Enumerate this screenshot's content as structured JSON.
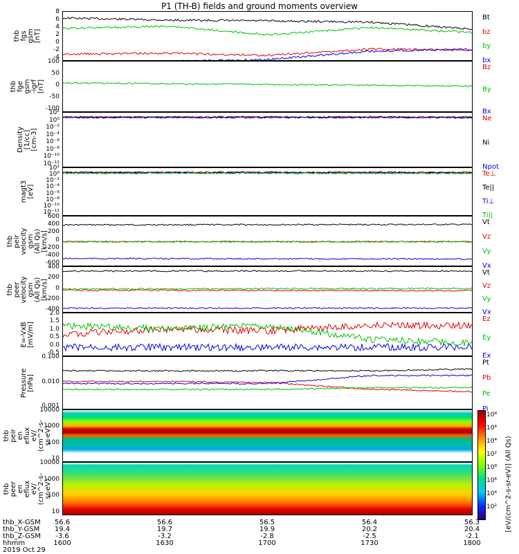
{
  "title": "P1 (TH-B) fields and ground moments overview",
  "panels": [
    {
      "id": "fgs_gsm",
      "ylabel": [
        "thb",
        "fgs",
        "gsm",
        "[nT]"
      ],
      "ticks": [
        "8",
        "6",
        "4",
        "2",
        "0",
        "-2",
        "-4"
      ],
      "legend": [
        {
          "label": "Bt",
          "color": "#000000"
        },
        {
          "label": "bz",
          "color": "#e00000"
        },
        {
          "label": "by",
          "color": "#00c000"
        },
        {
          "label": "bx",
          "color": "#0000e0"
        }
      ]
    },
    {
      "id": "fge_gsm",
      "ylabel": [
        "thb",
        "fge",
        "gsm",
        "-igrf",
        "[nT]"
      ],
      "ticks": [
        "100",
        "50",
        "0",
        "-50",
        "-100"
      ],
      "legend": [
        {
          "label": "Bz",
          "color": "#e00000"
        },
        {
          "label": "By",
          "color": "#00c000"
        },
        {
          "label": "Bx",
          "color": "#0000e0"
        }
      ]
    },
    {
      "id": "density",
      "ylabel": [
        "Density",
        "[1/cc]",
        "[cm-3]"
      ],
      "ticks": [
        "10²",
        "10⁰",
        "10⁻²",
        "10⁻⁴",
        "10⁻⁶",
        "10⁻⁸",
        "10⁻¹⁰",
        "10⁻¹²"
      ],
      "legend": [
        {
          "label": "Ne",
          "color": "#e00000"
        },
        {
          "label": "Ni",
          "color": "#000000"
        },
        {
          "label": "Npot",
          "color": "#0000e0"
        }
      ]
    },
    {
      "id": "temperature",
      "ylabel": [
        "magt3",
        "[eV]"
      ],
      "ticks": [
        "10²",
        "10⁰",
        "10⁻²",
        "10⁻⁴",
        "10⁻⁶",
        "10⁻⁸",
        "10⁻¹⁰",
        "10⁻¹²"
      ],
      "legend": [
        {
          "label": "Te⊥",
          "color": "#e00000"
        },
        {
          "label": "Te||",
          "color": "#000000"
        },
        {
          "label": "Ti⊥",
          "color": "#0000e0"
        },
        {
          "label": "Ti||",
          "color": "#00c000"
        }
      ]
    },
    {
      "id": "peir_velocity",
      "ylabel": [
        "thb",
        "peir",
        "velocity",
        "gsm",
        "(All Qs)",
        "[km/s]"
      ],
      "ticks": [
        "600",
        "400",
        "200",
        "0",
        "-200",
        "-400",
        "-600"
      ],
      "legend": [
        {
          "label": "Vt",
          "color": "#000000"
        },
        {
          "label": "Vz",
          "color": "#e00000"
        },
        {
          "label": "Vy",
          "color": "#00c000"
        },
        {
          "label": "Vx",
          "color": "#0000e0"
        }
      ]
    },
    {
      "id": "peer_velocity",
      "ylabel": [
        "thb",
        "peer",
        "velocity",
        "gsm",
        "(All Qs)",
        "[km/s]"
      ],
      "ticks": [
        "400",
        "200",
        "0",
        "-200",
        "-400"
      ],
      "legend": [
        {
          "label": "Vt",
          "color": "#000000"
        },
        {
          "label": "Vz",
          "color": "#e00000"
        },
        {
          "label": "Vy",
          "color": "#00c000"
        },
        {
          "label": "Vx",
          "color": "#0000e0"
        }
      ]
    },
    {
      "id": "efield",
      "ylabel": [
        "E=-VxB",
        "[mV/m]"
      ],
      "ticks": [
        "2.0",
        "1.5",
        "1.0",
        "0.5",
        "0.0",
        "-0.5"
      ],
      "legend": [
        {
          "label": "Ez",
          "color": "#e00000"
        },
        {
          "label": "Ey",
          "color": "#00c000"
        },
        {
          "label": "Ex",
          "color": "#0000e0"
        }
      ]
    },
    {
      "id": "pressure",
      "ylabel": [
        "Pressure",
        "[nPa]"
      ],
      "ticks": [
        "0.100",
        "0.010",
        "0.001"
      ],
      "legend": [
        {
          "label": "Pt",
          "color": "#000000"
        },
        {
          "label": "Pb",
          "color": "#e00000"
        },
        {
          "label": "Pe",
          "color": "#00c000"
        },
        {
          "label": "Pi",
          "color": "#0000e0"
        }
      ]
    },
    {
      "id": "peir_spec",
      "ylabel": [
        "thb",
        "peir",
        "en",
        "eflux",
        "eV/",
        "(cm^2-s-",
        "sr-eV)"
      ],
      "ticks": [
        "10000",
        "1000",
        "100",
        "10"
      ],
      "legend": []
    },
    {
      "id": "peer_spec",
      "ylabel": [
        "thb",
        "peer",
        "en",
        "eflux",
        "eV/",
        "(cm^2-s-",
        "sr-eV)"
      ],
      "ticks": [
        "10000",
        "1000",
        "100",
        "10"
      ],
      "legend": []
    }
  ],
  "colorbar": {
    "label": "[eV/(cm^2-s-sr-eV)] (All Qs)",
    "ticks_top": [
      "10⁸",
      "10⁶",
      "10⁴",
      "10²"
    ],
    "ticks_bottom": [
      "10⁸",
      "10⁶",
      "10⁴",
      "10²"
    ]
  },
  "x_axis": {
    "rows": [
      {
        "label": "thb_X-GSM",
        "values": [
          "56.6",
          "56.6",
          "56.5",
          "56.4",
          "56.3"
        ]
      },
      {
        "label": "thb_Y-GSM",
        "values": [
          "19.4",
          "19.7",
          "19.9",
          "20.2",
          "20.4"
        ]
      },
      {
        "label": "thb_Z-GSM",
        "values": [
          "-3.6",
          "-3.2",
          "-2.8",
          "-2.5",
          "-2.1"
        ]
      },
      {
        "label": "hhmm",
        "values": [
          "1600",
          "1630",
          "1700",
          "1730",
          "1800"
        ]
      }
    ],
    "date": "2019 Oct 29"
  },
  "chart_data": [
    {
      "type": "line",
      "panel": "fgs_gsm",
      "x": [
        "1600",
        "1630",
        "1700",
        "1730",
        "1800"
      ],
      "ylim": [
        -4,
        8
      ],
      "series": [
        {
          "name": "Bt",
          "values": [
            6.5,
            6.0,
            5.8,
            5.5,
            3.8
          ]
        },
        {
          "name": "bz",
          "values": [
            -2.2,
            -2.0,
            -2.5,
            -1.0,
            -1.2
          ]
        },
        {
          "name": "by",
          "values": [
            4.0,
            4.5,
            2.5,
            4.2,
            3.0
          ]
        },
        {
          "name": "bx",
          "values": [
            -4.0,
            -4.0,
            -3.5,
            -1.5,
            -1.0
          ]
        }
      ]
    },
    {
      "type": "line",
      "panel": "fge_gsm",
      "x": [
        "1600",
        "1800"
      ],
      "ylim": [
        -120,
        120
      ],
      "series": [
        {
          "name": "By",
          "values": [
            20,
            5
          ]
        }
      ]
    },
    {
      "type": "line",
      "panel": "density",
      "x": [
        "1600",
        "1630",
        "1700",
        "1730",
        "1800"
      ],
      "series": [
        {
          "name": "Ne",
          "values": [
            1.2,
            1.2,
            1.1,
            1.0,
            1.1
          ]
        },
        {
          "name": "Ni",
          "values": [
            1.0,
            1.0,
            1.0,
            0.9,
            1.0
          ]
        },
        {
          "name": "Npot",
          "values": [
            1.1,
            1.0,
            1.0,
            0.9,
            1.0
          ]
        }
      ]
    },
    {
      "type": "line",
      "panel": "peir_velocity",
      "x": [
        "1600",
        "1800"
      ],
      "ylim": [
        -600,
        600
      ],
      "series": [
        {
          "name": "Vt",
          "values": [
            400,
            410
          ]
        },
        {
          "name": "Vz",
          "values": [
            0,
            0
          ]
        },
        {
          "name": "Vy",
          "values": [
            0,
            0
          ]
        },
        {
          "name": "Vx",
          "values": [
            -400,
            -410
          ]
        }
      ]
    },
    {
      "type": "line",
      "panel": "peer_velocity",
      "x": [
        "1600",
        "1800"
      ],
      "ylim": [
        -400,
        400
      ],
      "series": [
        {
          "name": "Vt",
          "values": [
            330,
            330
          ]
        },
        {
          "name": "Vz",
          "values": [
            0,
            -10
          ]
        },
        {
          "name": "Vy",
          "values": [
            20,
            30
          ]
        },
        {
          "name": "Vx",
          "values": [
            -310,
            -310
          ]
        }
      ]
    },
    {
      "type": "line",
      "panel": "efield",
      "x": [
        "1600",
        "1630",
        "1700",
        "1730",
        "1800"
      ],
      "ylim": [
        -0.5,
        2.0
      ],
      "series": [
        {
          "name": "Ez",
          "values": [
            0.8,
            1.1,
            1.0,
            1.3,
            1.3
          ]
        },
        {
          "name": "Ey",
          "values": [
            1.3,
            1.1,
            1.3,
            0.5,
            0.3
          ]
        },
        {
          "name": "Ex",
          "values": [
            0.05,
            0.05,
            0.05,
            0.05,
            0.05
          ]
        }
      ]
    },
    {
      "type": "line",
      "panel": "pressure",
      "x": [
        "1600",
        "1630",
        "1700",
        "1730",
        "1800"
      ],
      "ylim": [
        0.001,
        0.1
      ],
      "series": [
        {
          "name": "Pt",
          "values": [
            0.03,
            0.03,
            0.03,
            0.03,
            0.035
          ]
        },
        {
          "name": "Pb",
          "values": [
            0.012,
            0.012,
            0.011,
            0.006,
            0.005
          ]
        },
        {
          "name": "Pe",
          "values": [
            0.006,
            0.006,
            0.006,
            0.007,
            0.007
          ]
        },
        {
          "name": "Pi",
          "values": [
            0.01,
            0.01,
            0.01,
            0.02,
            0.02
          ]
        }
      ]
    }
  ]
}
